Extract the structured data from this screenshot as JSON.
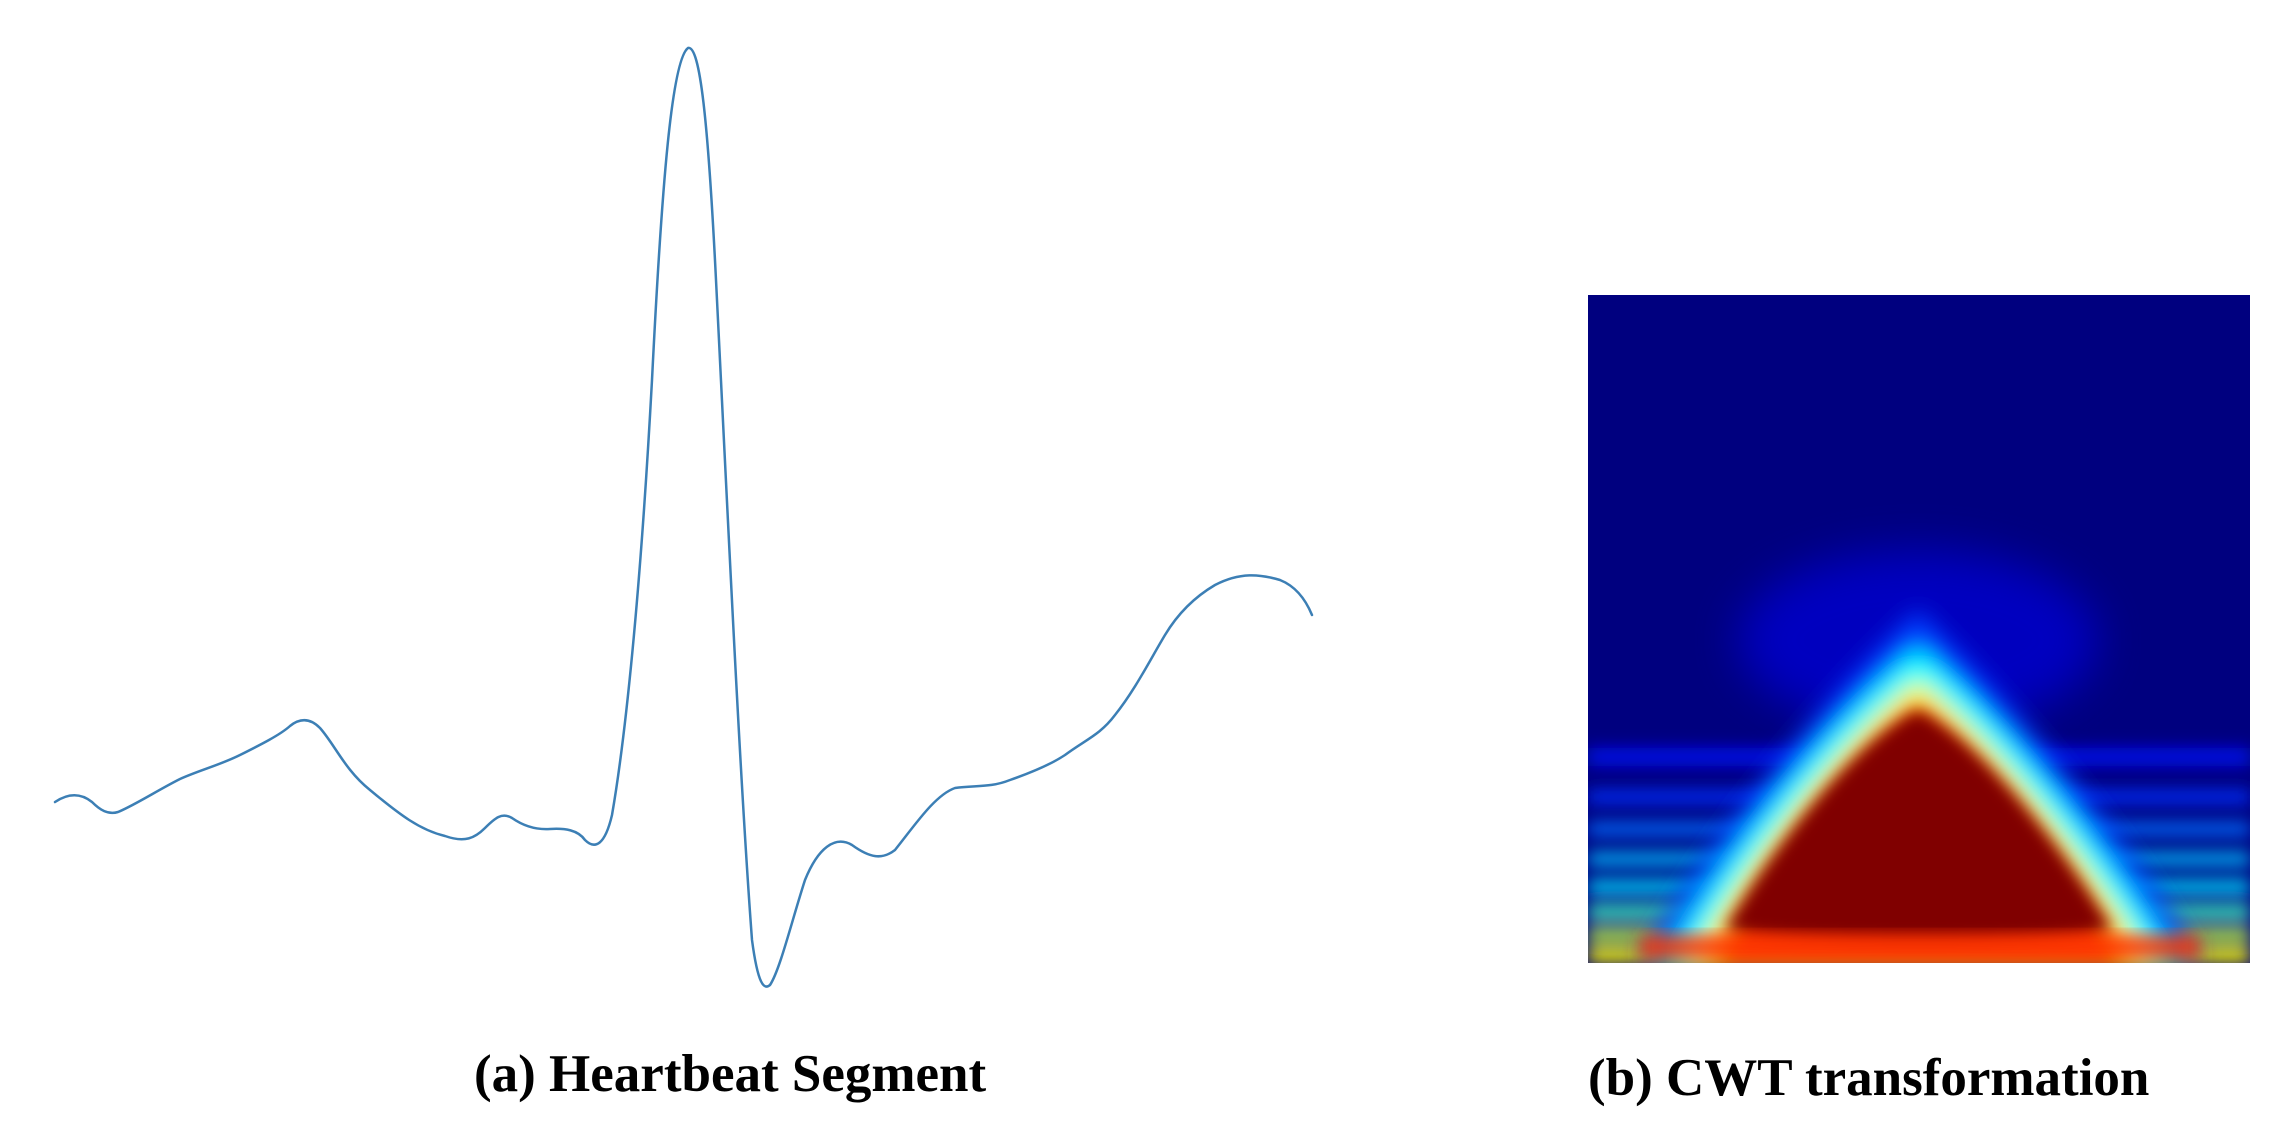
{
  "panels": [
    {
      "id": "a",
      "caption": "(a) Heartbeat Segment",
      "signal_color": "#3c7fb5",
      "signal_shape": [
        "baseline",
        "P wave",
        "QRS complex",
        "S dip",
        "T wave"
      ]
    },
    {
      "id": "b",
      "caption": "(b) CWT transformation",
      "colormap": "jet",
      "colormap_stops": [
        "#00007f",
        "#0000ff",
        "#00ffff",
        "#ffff00",
        "#ff0000",
        "#7f0000"
      ]
    }
  ]
}
